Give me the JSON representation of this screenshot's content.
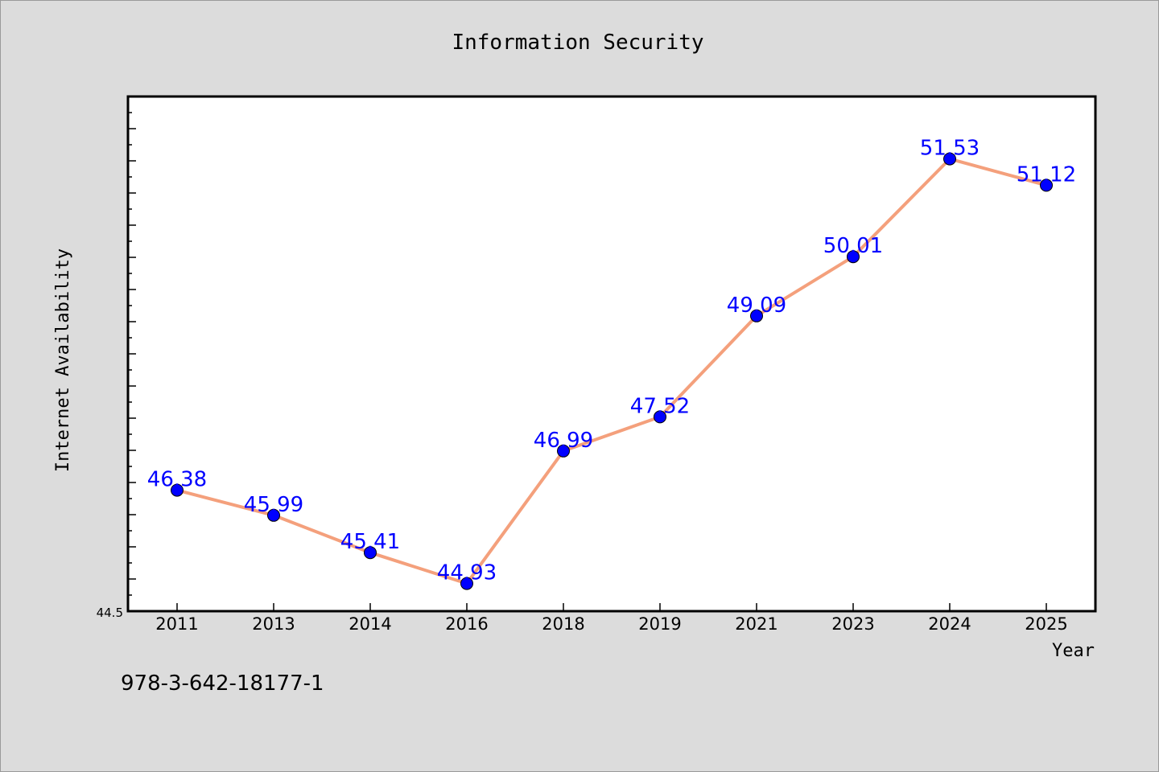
{
  "chart_data": {
    "type": "line",
    "title": "Information Security",
    "xlabel": "Year",
    "ylabel": "Internet Availability",
    "categories": [
      "2011",
      "2013",
      "2014",
      "2016",
      "2018",
      "2019",
      "2021",
      "2023",
      "2024",
      "2025"
    ],
    "series": [
      {
        "values": [
          46.38,
          45.99,
          45.41,
          44.93,
          46.99,
          47.52,
          49.09,
          50.01,
          51.53,
          51.12
        ],
        "data_labels": [
          "46.38",
          "45.99",
          "45.41",
          "44.93",
          "46.99",
          "47.52",
          "49.09",
          "50.01",
          "51.53",
          "51.12"
        ],
        "line_color": "#f4a07c",
        "marker_color": "#0000ff"
      }
    ],
    "ylim": [
      44.5,
      52.5
    ],
    "yticks_labeled": [
      "44.5"
    ],
    "grid": false,
    "legend": "none"
  },
  "footnote": "978-3-642-18177-1",
  "colors": {
    "background": "#dcdcdc",
    "plot_background": "#ffffff",
    "line": "#f4a07c",
    "marker": "#0000ff",
    "data_label": "#0000ff"
  }
}
